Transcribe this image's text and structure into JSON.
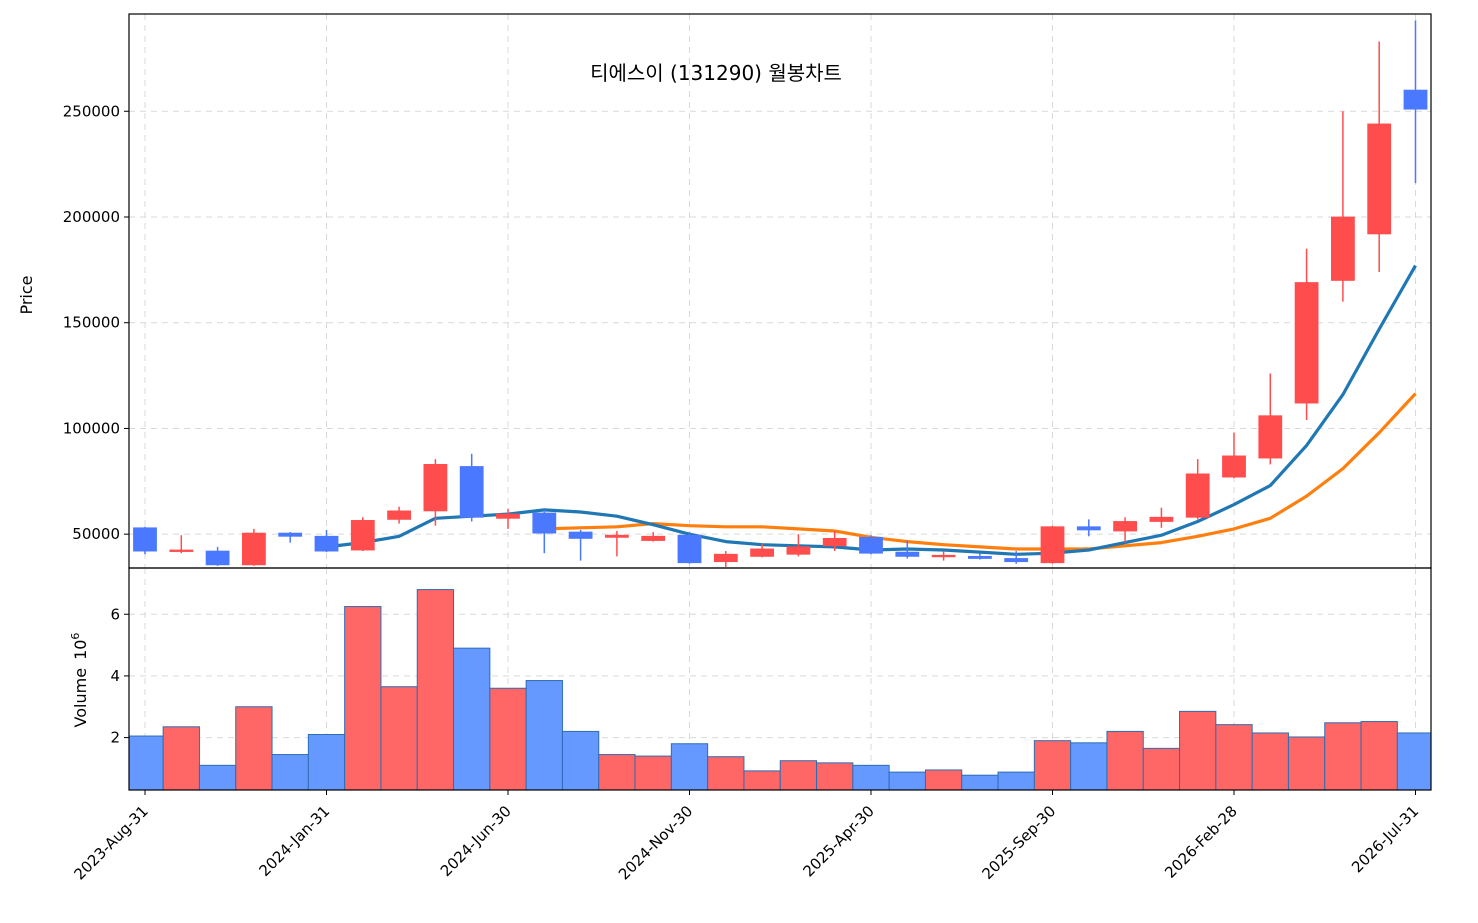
{
  "chart_data": {
    "type": "candlestick",
    "title": "티에스이 (131290) 월봉차트",
    "colors": {
      "up": "#ff4d4d",
      "down": "#4a78ff",
      "up_volume": "#ff6666",
      "down_volume": "#6699ff",
      "ma_short": "#1f77b4",
      "ma_long": "#ff7f0e"
    },
    "price_axis": {
      "label": "Price",
      "ticks": [
        50000,
        100000,
        150000,
        200000,
        250000
      ],
      "tick_labels": [
        "50000",
        "100000",
        "150000",
        "200000",
        "250000"
      ],
      "ylim": [
        34000,
        296000
      ]
    },
    "volume_axis": {
      "label": "Volume",
      "multiplier": "10",
      "multiplier_exp": "6",
      "ticks": [
        2,
        4,
        6
      ],
      "tick_labels": [
        "2",
        "4",
        "6"
      ],
      "ylim": [
        0.3,
        7.5
      ]
    },
    "x_tick_labels": [
      {
        "index": 0,
        "label": "2023-Aug-31"
      },
      {
        "index": 5,
        "label": "2024-Jan-31"
      },
      {
        "index": 10,
        "label": "2024-Jun-30"
      },
      {
        "index": 15,
        "label": "2024-Nov-30"
      },
      {
        "index": 20,
        "label": "2025-Apr-30"
      },
      {
        "index": 25,
        "label": "2025-Sep-30"
      },
      {
        "index": 30,
        "label": "2026-Feb-28"
      },
      {
        "index": 35,
        "label": "2026-Jul-31"
      }
    ],
    "candles": [
      {
        "date": "2023-08-31",
        "open": 53000,
        "high": 53500,
        "low": 40500,
        "close": 42000,
        "volume": 2.05
      },
      {
        "date": "2023-09-30",
        "open": 42000,
        "high": 49500,
        "low": 41000,
        "close": 42500,
        "volume": 2.35
      },
      {
        "date": "2023-10-31",
        "open": 42000,
        "high": 44000,
        "low": 35000,
        "close": 35500,
        "volume": 1.1
      },
      {
        "date": "2023-11-30",
        "open": 35500,
        "high": 52500,
        "low": 35000,
        "close": 50500,
        "volume": 3.0
      },
      {
        "date": "2023-12-31",
        "open": 50500,
        "high": 51000,
        "low": 46000,
        "close": 49000,
        "volume": 1.45
      },
      {
        "date": "2024-01-31",
        "open": 49000,
        "high": 52000,
        "low": 41500,
        "close": 42000,
        "volume": 2.1
      },
      {
        "date": "2024-02-29",
        "open": 42500,
        "high": 58000,
        "low": 42000,
        "close": 56500,
        "volume": 6.25
      },
      {
        "date": "2024-03-31",
        "open": 57000,
        "high": 63000,
        "low": 55000,
        "close": 61000,
        "volume": 3.65
      },
      {
        "date": "2024-04-30",
        "open": 61000,
        "high": 85500,
        "low": 54000,
        "close": 83000,
        "volume": 6.8
      },
      {
        "date": "2024-05-31",
        "open": 82000,
        "high": 88000,
        "low": 56000,
        "close": 58000,
        "volume": 4.9
      },
      {
        "date": "2024-06-30",
        "open": 57500,
        "high": 62000,
        "low": 52500,
        "close": 59500,
        "volume": 3.6
      },
      {
        "date": "2024-07-31",
        "open": 60000,
        "high": 61500,
        "low": 41000,
        "close": 50500,
        "volume": 3.85
      },
      {
        "date": "2024-08-31",
        "open": 51000,
        "high": 52000,
        "low": 37500,
        "close": 48000,
        "volume": 2.2
      },
      {
        "date": "2024-09-30",
        "open": 48500,
        "high": 51500,
        "low": 39500,
        "close": 49500,
        "volume": 1.45
      },
      {
        "date": "2024-10-31",
        "open": 47000,
        "high": 51000,
        "low": 46500,
        "close": 49000,
        "volume": 1.4
      },
      {
        "date": "2024-11-30",
        "open": 49500,
        "high": 51000,
        "low": 36000,
        "close": 36500,
        "volume": 1.8
      },
      {
        "date": "2024-12-31",
        "open": 37000,
        "high": 42000,
        "low": 34500,
        "close": 40500,
        "volume": 1.38
      },
      {
        "date": "2025-01-31",
        "open": 39500,
        "high": 45500,
        "low": 39000,
        "close": 43000,
        "volume": 0.92
      },
      {
        "date": "2025-02-28",
        "open": 40500,
        "high": 50000,
        "low": 39500,
        "close": 44000,
        "volume": 1.25
      },
      {
        "date": "2025-03-31",
        "open": 44500,
        "high": 51500,
        "low": 42000,
        "close": 48000,
        "volume": 1.18
      },
      {
        "date": "2025-04-30",
        "open": 48500,
        "high": 49500,
        "low": 40500,
        "close": 41000,
        "volume": 1.1
      },
      {
        "date": "2025-05-31",
        "open": 41500,
        "high": 47000,
        "low": 38500,
        "close": 39500,
        "volume": 0.88
      },
      {
        "date": "2025-06-30",
        "open": 39500,
        "high": 42000,
        "low": 37500,
        "close": 40000,
        "volume": 0.95
      },
      {
        "date": "2025-07-31",
        "open": 39500,
        "high": 41000,
        "low": 38000,
        "close": 38500,
        "volume": 0.78
      },
      {
        "date": "2025-08-31",
        "open": 38500,
        "high": 42000,
        "low": 36000,
        "close": 37000,
        "volume": 0.88
      },
      {
        "date": "2025-09-30",
        "open": 36500,
        "high": 54000,
        "low": 36000,
        "close": 53500,
        "volume": 1.9
      },
      {
        "date": "2025-10-31",
        "open": 53500,
        "high": 57000,
        "low": 49000,
        "close": 52000,
        "volume": 1.83
      },
      {
        "date": "2025-11-30",
        "open": 51500,
        "high": 58000,
        "low": 46000,
        "close": 56000,
        "volume": 2.2
      },
      {
        "date": "2025-12-31",
        "open": 56000,
        "high": 62500,
        "low": 53000,
        "close": 58000,
        "volume": 1.65
      },
      {
        "date": "2026-01-31",
        "open": 58000,
        "high": 85500,
        "low": 57000,
        "close": 78500,
        "volume": 2.85
      },
      {
        "date": "2026-02-28",
        "open": 77000,
        "high": 98000,
        "low": 76500,
        "close": 87000,
        "volume": 2.42
      },
      {
        "date": "2026-03-31",
        "open": 86000,
        "high": 126000,
        "low": 83000,
        "close": 106000,
        "volume": 2.15
      },
      {
        "date": "2026-04-30",
        "open": 112000,
        "high": 185000,
        "low": 104000,
        "close": 169000,
        "volume": 2.02
      },
      {
        "date": "2026-05-31",
        "open": 170000,
        "high": 250000,
        "low": 160000,
        "close": 200000,
        "volume": 2.48
      },
      {
        "date": "2026-06-30",
        "open": 192000,
        "high": 283000,
        "low": 174000,
        "close": 244000,
        "volume": 2.52
      },
      {
        "date": "2026-07-31",
        "open": 260000,
        "high": 293000,
        "low": 216000,
        "close": 251000,
        "volume": 2.15
      }
    ],
    "ma_short": [
      null,
      null,
      null,
      null,
      null,
      44000,
      46000,
      49000,
      57500,
      58500,
      59500,
      61500,
      60500,
      58500,
      54500,
      50000,
      46500,
      45000,
      44500,
      44000,
      42500,
      43000,
      42500,
      41500,
      40500,
      41000,
      42500,
      46000,
      49500,
      56000,
      64000,
      73000,
      92000,
      116000,
      147000,
      177000
    ],
    "ma_long": [
      null,
      null,
      null,
      null,
      null,
      null,
      null,
      null,
      null,
      null,
      null,
      52500,
      53000,
      53500,
      55000,
      54000,
      53500,
      53500,
      52500,
      51500,
      48500,
      46500,
      45000,
      44000,
      43000,
      43000,
      43000,
      44500,
      46000,
      49000,
      52500,
      57500,
      68000,
      81000,
      98000,
      116500
    ]
  }
}
